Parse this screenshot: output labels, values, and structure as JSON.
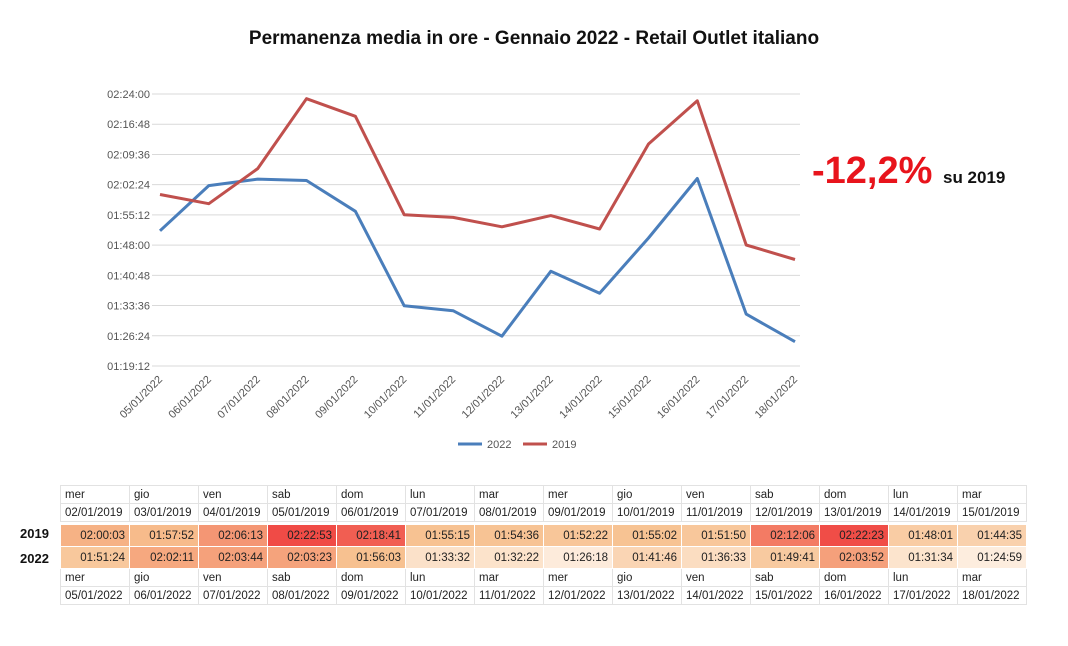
{
  "chart_data": {
    "type": "line",
    "title": "Permanenza media in ore - Gennaio 2022 - Retail Outlet italiano",
    "categories": [
      "05/01/2022",
      "06/01/2022",
      "07/01/2022",
      "08/01/2022",
      "09/01/2022",
      "10/01/2022",
      "11/01/2022",
      "12/01/2022",
      "13/01/2022",
      "14/01/2022",
      "15/01/2022",
      "16/01/2022",
      "17/01/2022",
      "18/01/2022"
    ],
    "y_ticks": [
      "01:19:12",
      "01:26:24",
      "01:33:36",
      "01:40:48",
      "01:48:00",
      "01:55:12",
      "02:02:24",
      "02:09:36",
      "02:16:48",
      "02:24:00"
    ],
    "ylim": [
      "01:19:12",
      "02:24:00"
    ],
    "series": [
      {
        "name": "2022",
        "color": "#4a7ebb",
        "values": [
          "01:51:24",
          "02:02:11",
          "02:03:44",
          "02:03:23",
          "01:56:03",
          "01:33:32",
          "01:32:22",
          "01:26:18",
          "01:41:46",
          "01:36:33",
          "01:49:41",
          "02:03:52",
          "01:31:34",
          "01:24:59"
        ]
      },
      {
        "name": "2019",
        "color": "#c0504d",
        "values": [
          "02:00:03",
          "01:57:52",
          "02:06:13",
          "02:22:53",
          "02:18:41",
          "01:55:15",
          "01:54:36",
          "01:52:22",
          "01:55:02",
          "01:51:50",
          "02:12:06",
          "02:22:23",
          "01:48:01",
          "01:44:35"
        ]
      }
    ],
    "legend_position": "bottom",
    "grid": true
  },
  "headline": {
    "pct": "-12,2%",
    "sub": "su 2019"
  },
  "table": {
    "row_labels": {
      "y2019": "2019",
      "y2022": "2022"
    },
    "days_2019": [
      "mer",
      "gio",
      "ven",
      "sab",
      "dom",
      "lun",
      "mar",
      "mer",
      "gio",
      "ven",
      "sab",
      "dom",
      "lun",
      "mar"
    ],
    "dates_2019": [
      "02/01/2019",
      "03/01/2019",
      "04/01/2019",
      "05/01/2019",
      "06/01/2019",
      "07/01/2019",
      "08/01/2019",
      "09/01/2019",
      "10/01/2019",
      "11/01/2019",
      "12/01/2019",
      "13/01/2019",
      "14/01/2019",
      "15/01/2019"
    ],
    "values_2019": [
      "02:00:03",
      "01:57:52",
      "02:06:13",
      "02:22:53",
      "02:18:41",
      "01:55:15",
      "01:54:36",
      "01:52:22",
      "01:55:02",
      "01:51:50",
      "02:12:06",
      "02:22:23",
      "01:48:01",
      "01:44:35"
    ],
    "values_2022": [
      "01:51:24",
      "02:02:11",
      "02:03:44",
      "02:03:23",
      "01:56:03",
      "01:33:32",
      "01:32:22",
      "01:26:18",
      "01:41:46",
      "01:36:33",
      "01:49:41",
      "02:03:52",
      "01:31:34",
      "01:24:59"
    ],
    "days_2022": [
      "mer",
      "gio",
      "ven",
      "sab",
      "dom",
      "lun",
      "mar",
      "mer",
      "gio",
      "ven",
      "sab",
      "dom",
      "lun",
      "mar"
    ],
    "dates_2022": [
      "05/01/2022",
      "06/01/2022",
      "07/01/2022",
      "08/01/2022",
      "09/01/2022",
      "10/01/2022",
      "11/01/2022",
      "12/01/2022",
      "13/01/2022",
      "14/01/2022",
      "15/01/2022",
      "16/01/2022",
      "17/01/2022",
      "18/01/2022"
    ]
  }
}
